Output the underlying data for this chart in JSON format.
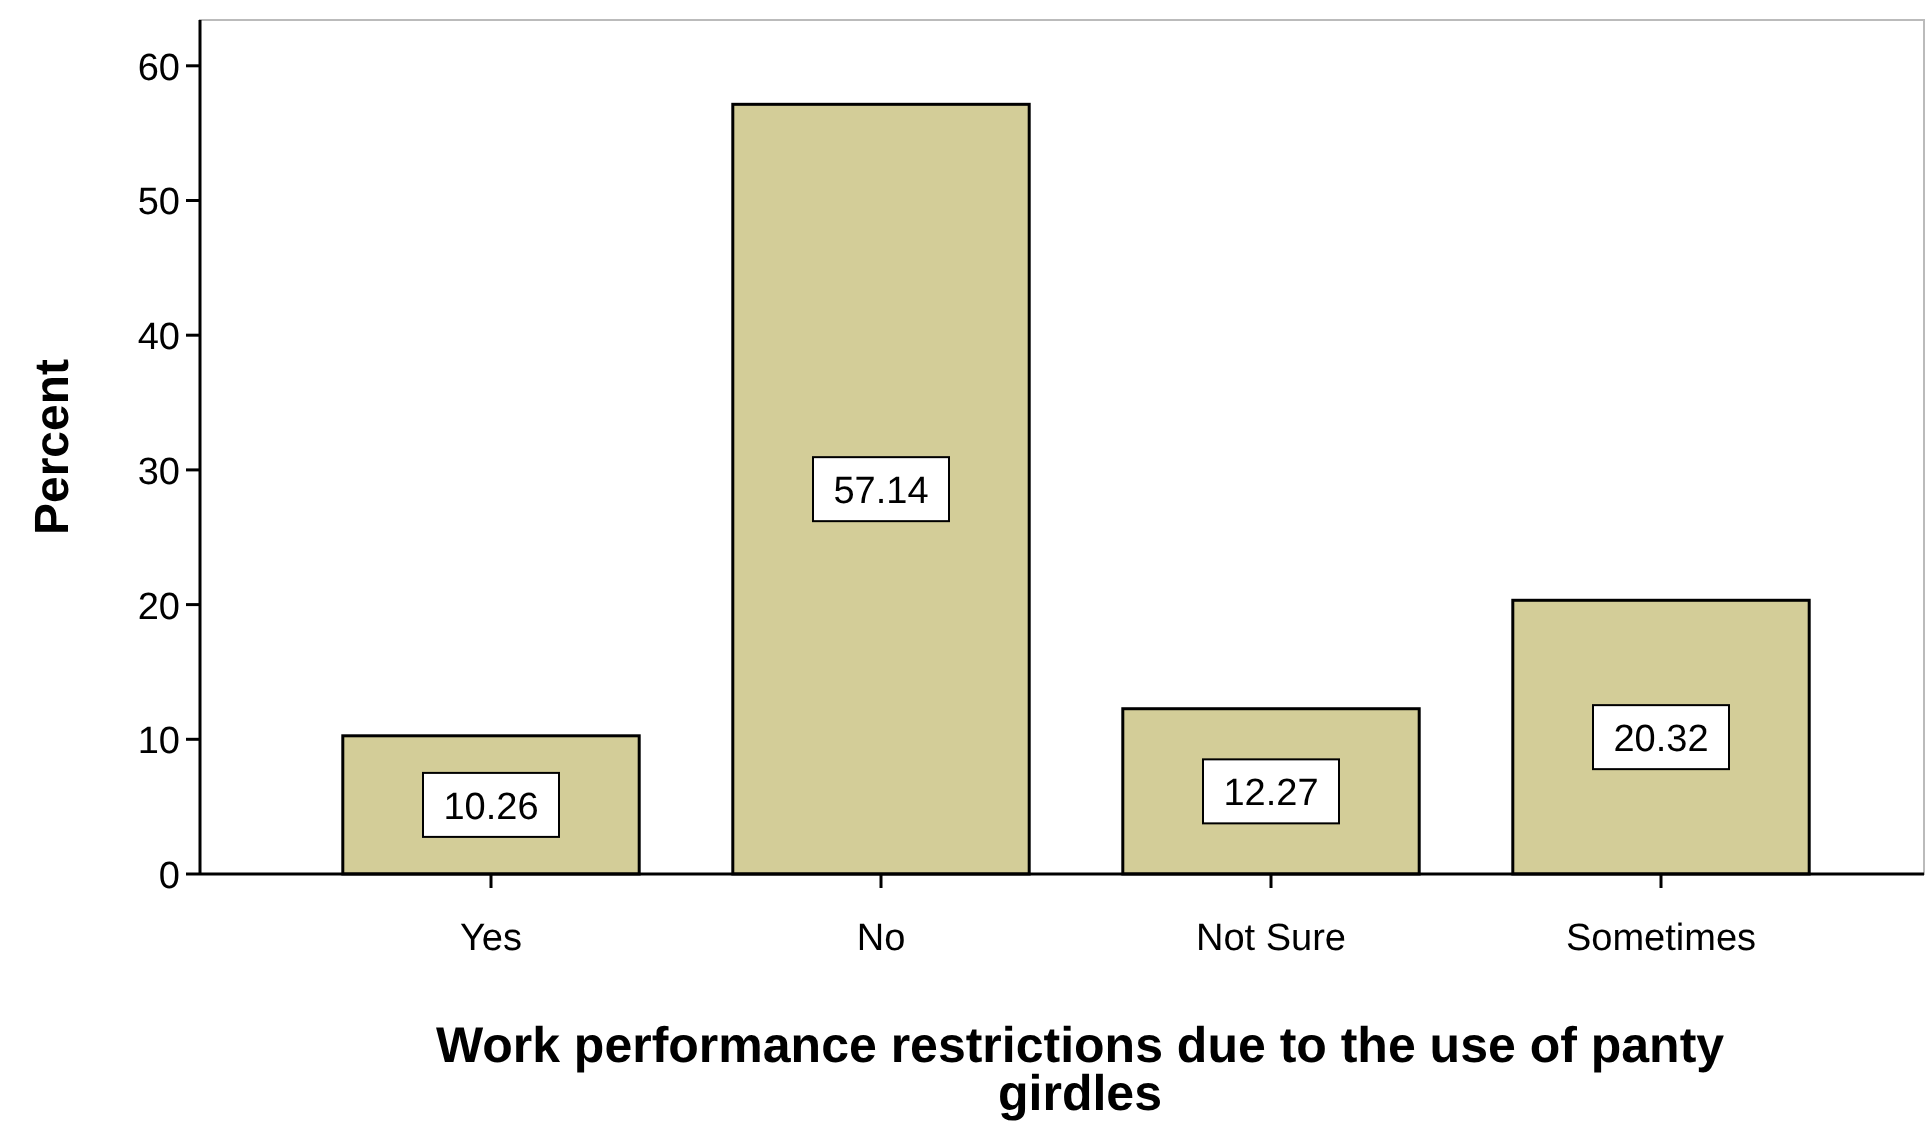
{
  "chart_data": {
    "type": "bar",
    "xlabel": "Work performance restrictions due to the use of panty girdles",
    "ylabel": "Percent",
    "categories": [
      "Yes",
      "No",
      "Not Sure",
      "Sometimes"
    ],
    "values": [
      10.26,
      57.14,
      12.27,
      20.32
    ],
    "color": "#d3cd98",
    "ylim": [
      0,
      63.4
    ],
    "yticks": [
      0,
      10,
      20,
      30,
      40,
      50,
      60
    ],
    "data_labels": true
  }
}
